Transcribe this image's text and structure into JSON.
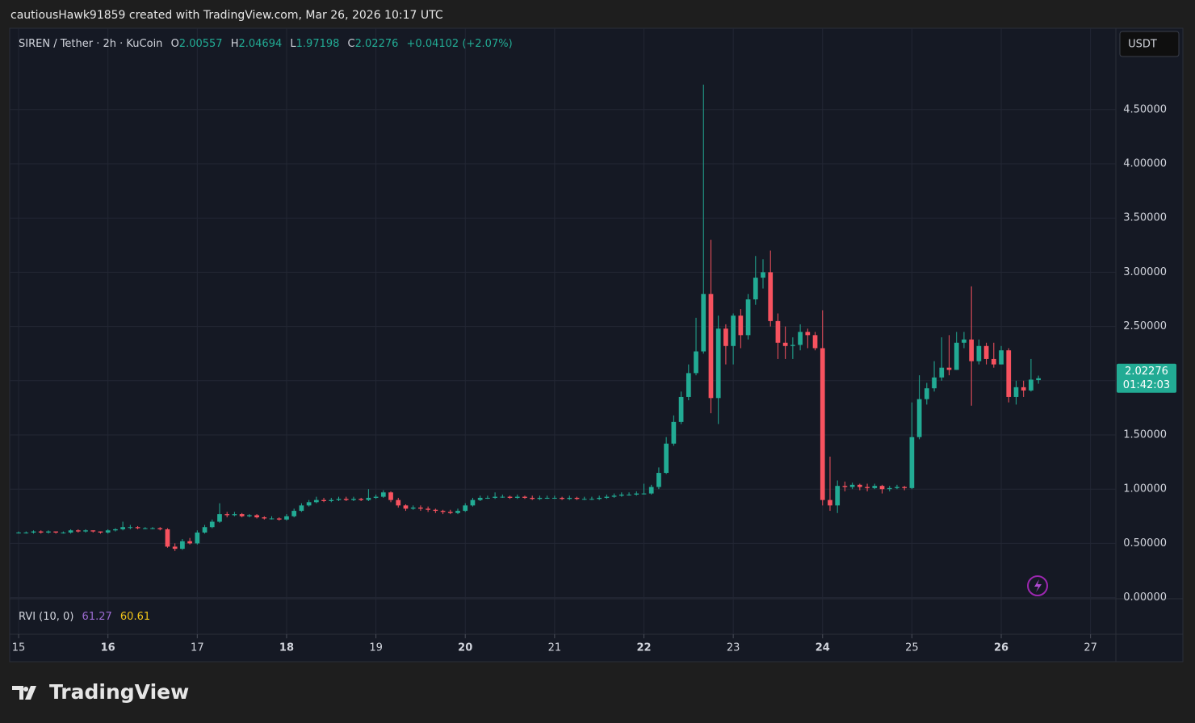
{
  "header": {
    "attribution": "cautiousHawk91859 created with TradingView.com, Mar 26, 2026 10:17 UTC",
    "o_label": "O",
    "h_label": "H",
    "l_label": "L",
    "c_label": "C",
    "change": "+0.04102 (+2.07%)",
    "currency": "USDT",
    "countdown": "01:42:03"
  },
  "indicator": {
    "name": "RVI (10, 0)",
    "values": [
      61.27,
      60.61
    ],
    "colors": [
      "#9c6bd1",
      "#f0c419"
    ]
  },
  "brand": "TradingView",
  "chart_data": {
    "type": "candlestick",
    "title": "SIREN / Tether · 2h · KuCoin",
    "up_color": "#22ab94",
    "down_color": "#f7525f",
    "open": [
      0.6,
      0.6,
      0.6,
      0.61,
      0.6,
      0.61,
      0.6,
      0.6,
      0.62,
      0.61,
      0.62,
      0.61,
      0.6,
      0.62,
      0.63,
      0.65,
      0.65,
      0.64,
      0.64,
      0.64,
      0.63,
      0.47,
      0.45,
      0.52,
      0.5,
      0.6,
      0.65,
      0.7,
      0.77,
      0.76,
      0.77,
      0.75,
      0.76,
      0.74,
      0.73,
      0.73,
      0.72,
      0.75,
      0.8,
      0.85,
      0.88,
      0.9,
      0.89,
      0.9,
      0.91,
      0.9,
      0.91,
      0.9,
      0.92,
      0.93,
      0.97,
      0.9,
      0.85,
      0.82,
      0.83,
      0.82,
      0.81,
      0.8,
      0.79,
      0.78,
      0.8,
      0.85,
      0.9,
      0.92,
      0.92,
      0.93,
      0.93,
      0.92,
      0.93,
      0.92,
      0.91,
      0.92,
      0.92,
      0.92,
      0.91,
      0.92,
      0.91,
      0.91,
      0.91,
      0.92,
      0.93,
      0.94,
      0.95,
      0.95,
      0.96,
      0.96,
      1.02,
      1.15,
      1.42,
      1.62,
      1.85,
      2.07,
      2.27,
      2.8,
      1.84,
      2.48,
      2.32,
      2.6,
      2.42,
      2.75,
      2.95,
      3.0,
      2.55,
      2.35,
      2.32,
      2.33,
      2.45,
      2.42,
      2.3,
      0.9,
      0.85,
      1.03,
      1.02,
      1.04,
      1.02,
      1.01,
      1.03,
      1.0,
      1.01,
      1.02,
      1.01,
      1.48,
      1.83,
      1.93,
      2.03,
      2.12,
      2.1,
      2.35,
      2.38,
      2.18,
      2.32,
      2.2,
      2.15,
      2.28,
      1.85,
      1.94,
      1.91,
      2.00557
    ],
    "high": [
      0.61,
      0.61,
      0.62,
      0.62,
      0.62,
      0.61,
      0.61,
      0.63,
      0.63,
      0.63,
      0.62,
      0.61,
      0.63,
      0.64,
      0.7,
      0.67,
      0.66,
      0.65,
      0.65,
      0.65,
      0.64,
      0.5,
      0.54,
      0.55,
      0.62,
      0.67,
      0.72,
      0.87,
      0.79,
      0.79,
      0.78,
      0.77,
      0.77,
      0.75,
      0.75,
      0.74,
      0.77,
      0.82,
      0.87,
      0.9,
      0.93,
      0.92,
      0.92,
      0.93,
      0.93,
      0.93,
      0.92,
      1.0,
      0.95,
      0.99,
      0.98,
      0.92,
      0.86,
      0.85,
      0.85,
      0.84,
      0.82,
      0.81,
      0.81,
      0.82,
      0.87,
      0.92,
      0.94,
      0.94,
      0.97,
      0.95,
      0.94,
      0.95,
      0.94,
      0.94,
      0.94,
      0.94,
      0.94,
      0.93,
      0.94,
      0.93,
      0.93,
      0.93,
      0.94,
      0.95,
      0.96,
      0.97,
      0.97,
      0.98,
      1.05,
      1.04,
      1.2,
      1.48,
      1.68,
      1.9,
      2.15,
      2.58,
      4.73,
      3.3,
      2.6,
      2.52,
      2.62,
      2.66,
      2.8,
      3.15,
      3.12,
      3.2,
      2.62,
      2.5,
      2.4,
      2.52,
      2.48,
      2.45,
      2.65,
      1.3,
      1.08,
      1.07,
      1.06,
      1.05,
      1.05,
      1.05,
      1.04,
      1.03,
      1.04,
      1.03,
      1.8,
      2.05,
      1.98,
      2.18,
      2.4,
      2.42,
      2.45,
      2.45,
      2.87,
      2.38,
      2.35,
      2.35,
      2.32,
      2.3,
      2.0,
      2.0,
      2.2,
      2.04694
    ],
    "low": [
      0.59,
      0.59,
      0.59,
      0.59,
      0.59,
      0.59,
      0.59,
      0.59,
      0.6,
      0.6,
      0.6,
      0.59,
      0.59,
      0.61,
      0.62,
      0.63,
      0.63,
      0.63,
      0.63,
      0.62,
      0.46,
      0.43,
      0.44,
      0.49,
      0.49,
      0.59,
      0.64,
      0.69,
      0.74,
      0.75,
      0.74,
      0.74,
      0.73,
      0.72,
      0.72,
      0.71,
      0.71,
      0.74,
      0.79,
      0.84,
      0.87,
      0.88,
      0.88,
      0.89,
      0.89,
      0.89,
      0.89,
      0.89,
      0.91,
      0.92,
      0.88,
      0.83,
      0.8,
      0.81,
      0.8,
      0.79,
      0.78,
      0.77,
      0.77,
      0.77,
      0.79,
      0.84,
      0.89,
      0.91,
      0.91,
      0.92,
      0.91,
      0.91,
      0.91,
      0.9,
      0.9,
      0.91,
      0.91,
      0.9,
      0.9,
      0.9,
      0.9,
      0.9,
      0.9,
      0.91,
      0.92,
      0.93,
      0.94,
      0.94,
      0.95,
      0.95,
      1.0,
      1.14,
      1.4,
      1.6,
      1.82,
      2.05,
      2.25,
      1.7,
      1.6,
      2.15,
      2.15,
      2.3,
      2.38,
      2.7,
      2.85,
      2.5,
      2.2,
      2.2,
      2.2,
      2.28,
      2.3,
      2.28,
      0.85,
      0.8,
      0.78,
      0.98,
      1.0,
      0.99,
      0.98,
      1.0,
      0.96,
      0.98,
      1.0,
      0.99,
      1.0,
      1.46,
      1.78,
      1.9,
      2.0,
      2.05,
      2.1,
      2.3,
      1.77,
      2.15,
      2.15,
      2.12,
      2.15,
      1.8,
      1.78,
      1.85,
      1.9,
      1.97198
    ],
    "close": [
      0.6,
      0.6,
      0.61,
      0.6,
      0.61,
      0.6,
      0.6,
      0.62,
      0.61,
      0.62,
      0.61,
      0.6,
      0.62,
      0.63,
      0.65,
      0.65,
      0.64,
      0.64,
      0.64,
      0.63,
      0.47,
      0.45,
      0.52,
      0.5,
      0.6,
      0.65,
      0.7,
      0.77,
      0.76,
      0.77,
      0.75,
      0.76,
      0.74,
      0.73,
      0.73,
      0.72,
      0.75,
      0.8,
      0.85,
      0.88,
      0.9,
      0.89,
      0.9,
      0.91,
      0.9,
      0.91,
      0.9,
      0.92,
      0.93,
      0.97,
      0.9,
      0.85,
      0.82,
      0.83,
      0.82,
      0.81,
      0.8,
      0.79,
      0.78,
      0.8,
      0.85,
      0.9,
      0.92,
      0.92,
      0.93,
      0.93,
      0.92,
      0.93,
      0.92,
      0.91,
      0.92,
      0.92,
      0.92,
      0.91,
      0.92,
      0.91,
      0.91,
      0.91,
      0.92,
      0.93,
      0.94,
      0.95,
      0.95,
      0.96,
      0.96,
      1.02,
      1.15,
      1.42,
      1.62,
      1.85,
      2.07,
      2.27,
      2.8,
      1.84,
      2.48,
      2.32,
      2.6,
      2.42,
      2.75,
      2.95,
      3.0,
      2.55,
      2.35,
      2.32,
      2.33,
      2.45,
      2.42,
      2.3,
      0.9,
      0.85,
      1.03,
      1.02,
      1.04,
      1.02,
      1.01,
      1.03,
      1.0,
      1.01,
      1.02,
      1.01,
      1.48,
      1.83,
      1.93,
      2.03,
      2.12,
      2.1,
      2.35,
      2.38,
      2.18,
      2.32,
      2.2,
      2.15,
      2.28,
      1.85,
      1.94,
      1.91,
      2.01,
      2.02276
    ],
    "ylim": [
      0,
      5.25
    ],
    "yticks": [
      {
        "value": 0,
        "label": "0.00000"
      },
      {
        "value": 0.5,
        "label": "0.50000"
      },
      {
        "value": 1,
        "label": "1.00000"
      },
      {
        "value": 1.5,
        "label": "1.50000"
      },
      {
        "value": 2,
        "label": "2.00000"
      },
      {
        "value": 2.5,
        "label": "2.50000"
      },
      {
        "value": 3,
        "label": "3.00000"
      },
      {
        "value": 3.5,
        "label": "3.50000"
      },
      {
        "value": 4,
        "label": "4.00000"
      },
      {
        "value": 4.5,
        "label": "4.50000"
      }
    ],
    "xlim": [
      -1.2,
      147.4
    ],
    "xticks": [
      {
        "value": 0,
        "label": "15"
      },
      {
        "value": 12,
        "label": "16"
      },
      {
        "value": 24,
        "label": "17"
      },
      {
        "value": 36,
        "label": "18"
      },
      {
        "value": 48,
        "label": "19"
      },
      {
        "value": 60,
        "label": "20"
      },
      {
        "value": 72,
        "label": "21"
      },
      {
        "value": 84,
        "label": "22"
      },
      {
        "value": 96,
        "label": "23"
      },
      {
        "value": 108,
        "label": "24"
      },
      {
        "value": 120,
        "label": "25"
      },
      {
        "value": 132,
        "label": "26"
      },
      {
        "value": 144,
        "label": "27"
      }
    ],
    "grid": true
  }
}
